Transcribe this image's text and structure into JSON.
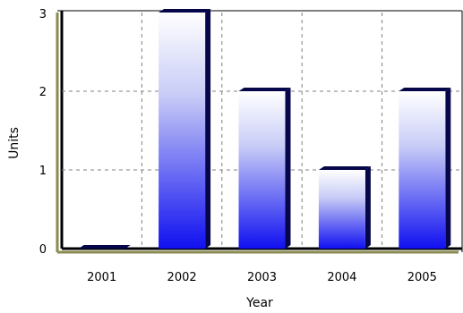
{
  "chart_data": {
    "type": "bar",
    "categories": [
      "2001",
      "2002",
      "2003",
      "2004",
      "2005"
    ],
    "values": [
      0,
      3,
      2,
      1,
      2
    ],
    "xlabel": "Year",
    "ylabel": "Units",
    "ylim": [
      0,
      3
    ],
    "yticks": [
      "0",
      "1",
      "2",
      "3"
    ],
    "grid": true,
    "colors": {
      "bar_top": "#ffffff",
      "bar_bottom": "#1010f0",
      "bar_shadow": "#06064a",
      "plot_edge": "#8a8a52",
      "grid": "#808080"
    }
  }
}
